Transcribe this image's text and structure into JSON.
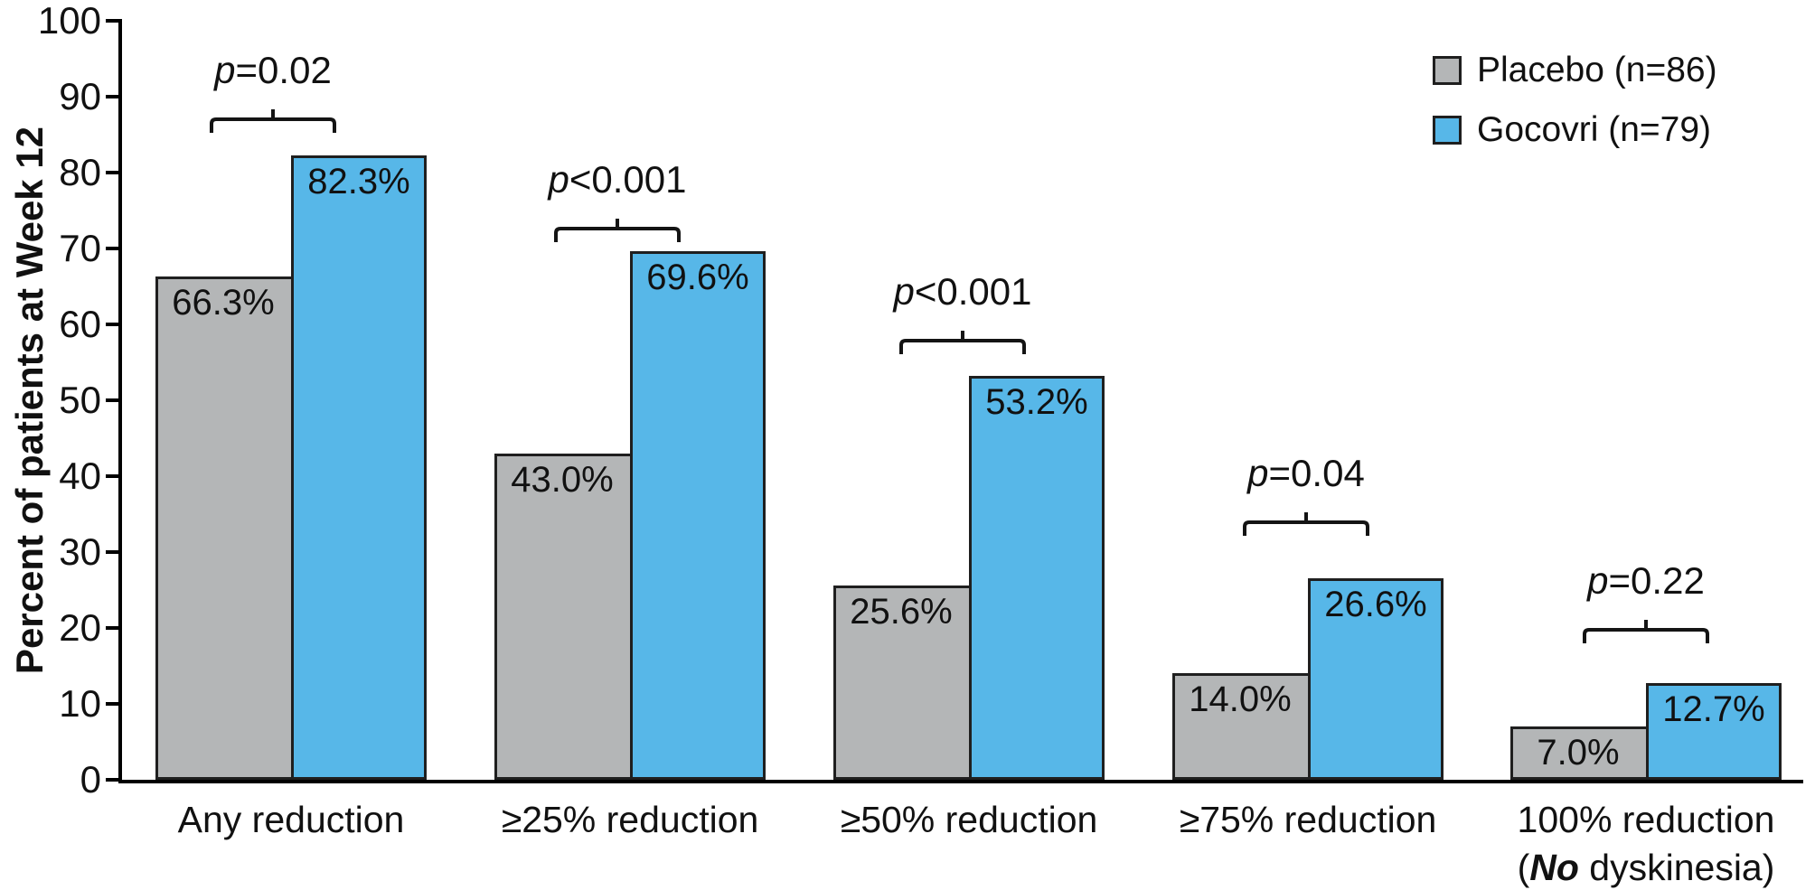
{
  "chart_data": {
    "type": "bar",
    "title": "",
    "ylabel": "Percent of patients at Week 12",
    "xlabel": "",
    "ylim": [
      0,
      100
    ],
    "y_ticks": [
      0,
      10,
      20,
      30,
      40,
      50,
      60,
      70,
      80,
      90,
      100
    ],
    "grid": false,
    "legend_position": "top-right",
    "categories": [
      {
        "label": "Any reduction"
      },
      {
        "label": "≥25% reduction"
      },
      {
        "label": "≥50% reduction"
      },
      {
        "label": "≥75% reduction"
      },
      {
        "label": "100% reduction",
        "label_line2_pre": "(",
        "label_line2_bold_italic": "No",
        "label_line2_post": " dyskinesia)"
      }
    ],
    "series": [
      {
        "name": "Placebo (n=86)",
        "color": "#b4b6b7",
        "values": [
          66.3,
          43.0,
          25.6,
          14.0,
          7.0
        ],
        "value_labels": [
          "66.3%",
          "43.0%",
          "25.6%",
          "14.0%",
          "7.0%"
        ]
      },
      {
        "name": "Gocovri (n=79)",
        "color": "#57b7e8",
        "values": [
          82.3,
          69.6,
          53.2,
          26.6,
          12.7
        ],
        "value_labels": [
          "82.3%",
          "69.6%",
          "53.2%",
          "26.6%",
          "12.7%"
        ]
      }
    ],
    "p_values": [
      "p=0.02",
      "p<0.001",
      "p<0.001",
      "p=0.04",
      "p=0.22"
    ]
  },
  "colors": {
    "placebo_fill": "#b4b6b7",
    "gocovri_fill": "#57b7e8",
    "bar_border": "#1f1f1f",
    "axis": "#000000",
    "text": "#111111",
    "background": "#ffffff"
  }
}
